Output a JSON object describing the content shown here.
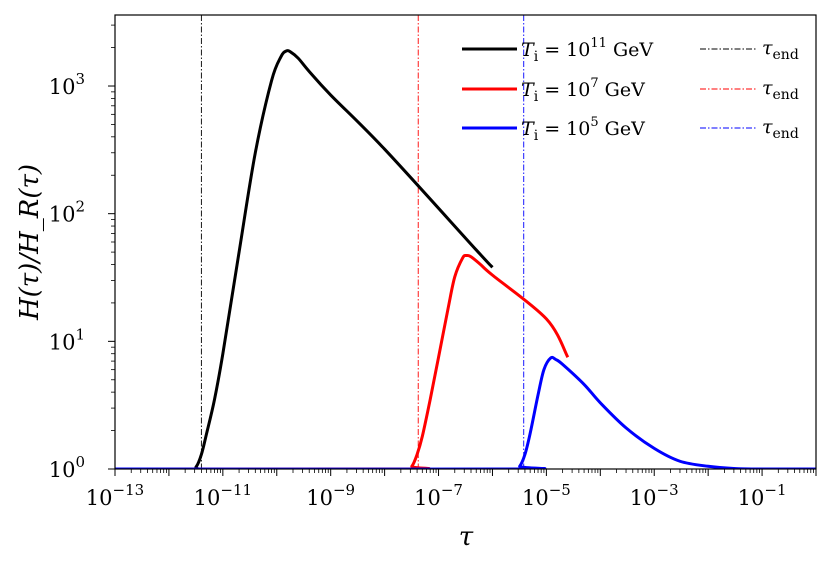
{
  "chart_data": {
    "type": "line",
    "title": "",
    "xlabel": "τ",
    "ylabel": "H(τ)/H_R(τ)",
    "xscale": "log",
    "yscale": "log",
    "xlim": [
      1e-13,
      1
    ],
    "ylim": [
      1,
      3600
    ],
    "x_ticks": [
      {
        "value": 1e-13,
        "base": "10",
        "exp": "−13"
      },
      {
        "value": 1e-11,
        "base": "10",
        "exp": "−11"
      },
      {
        "value": 1e-09,
        "base": "10",
        "exp": "−9"
      },
      {
        "value": 1e-07,
        "base": "10",
        "exp": "−7"
      },
      {
        "value": 1e-05,
        "base": "10",
        "exp": "−5"
      },
      {
        "value": 0.001,
        "base": "10",
        "exp": "−3"
      },
      {
        "value": 0.1,
        "base": "10",
        "exp": "−1"
      }
    ],
    "y_ticks": [
      {
        "value": 1,
        "base": "10",
        "exp": "0"
      },
      {
        "value": 10,
        "base": "10",
        "exp": "1"
      },
      {
        "value": 100,
        "base": "10",
        "exp": "2"
      },
      {
        "value": 1000,
        "base": "10",
        "exp": "3"
      }
    ],
    "legend_position": "top-right",
    "series": [
      {
        "name": "T_i = 10^11 GeV",
        "label_var": "T",
        "label_sub": "i",
        "label_eq": " = 10",
        "label_exp": "11",
        "label_unit": " GeV",
        "color": "#000000",
        "points": [
          [
            1e-13,
            1
          ],
          [
            2.5e-12,
            1
          ],
          [
            3.2e-12,
            1.04
          ],
          [
            4e-12,
            1.3
          ],
          [
            5e-12,
            1.9
          ],
          [
            7e-12,
            3.5
          ],
          [
            1e-11,
            8
          ],
          [
            2e-11,
            50
          ],
          [
            4e-11,
            300
          ],
          [
            8e-11,
            1100
          ],
          [
            1.2e-10,
            1700
          ],
          [
            1.5e-10,
            1880
          ],
          [
            1.8e-10,
            1850
          ],
          [
            2.5e-10,
            1650
          ],
          [
            4e-10,
            1300
          ],
          [
            1e-09,
            850
          ],
          [
            1e-08,
            320
          ],
          [
            5e-07,
            52
          ],
          [
            1e-06,
            38
          ]
        ]
      },
      {
        "name": "T_i = 10^7 GeV",
        "label_var": "T",
        "label_sub": "i",
        "label_eq": " = 10",
        "label_exp": "7",
        "label_unit": " GeV",
        "color": "#ff0000",
        "points": [
          [
            1e-13,
            1
          ],
          [
            2.5e-08,
            1
          ],
          [
            3.2e-08,
            1.05
          ],
          [
            4e-08,
            1.3
          ],
          [
            5e-08,
            1.8
          ],
          [
            7e-08,
            3.5
          ],
          [
            1e-07,
            7.5
          ],
          [
            1.5e-07,
            18
          ],
          [
            2e-07,
            32
          ],
          [
            2.8e-07,
            45
          ],
          [
            3.3e-07,
            47
          ],
          [
            4e-07,
            46
          ],
          [
            6e-07,
            40
          ],
          [
            1e-06,
            33
          ],
          [
            1e-05,
            15
          ],
          [
            2.5e-05,
            7.5
          ]
        ]
      },
      {
        "name": "T_i = 10^5 GeV",
        "label_var": "T",
        "label_sub": "i",
        "label_eq": " = 10",
        "label_exp": "5",
        "label_unit": " GeV",
        "color": "#0000ff",
        "points": [
          [
            1e-13,
            1
          ],
          [
            2.5e-06,
            1
          ],
          [
            3.2e-06,
            1.05
          ],
          [
            4e-06,
            1.3
          ],
          [
            5e-06,
            1.9
          ],
          [
            7e-06,
            3.8
          ],
          [
            9e-06,
            6
          ],
          [
            1.2e-05,
            7.4
          ],
          [
            1.5e-05,
            7.2
          ],
          [
            2e-05,
            6.6
          ],
          [
            5e-05,
            4.6
          ],
          [
            0.0001,
            3.3
          ],
          [
            0.0003,
            2.1
          ],
          [
            0.001,
            1.45
          ],
          [
            0.003,
            1.15
          ],
          [
            0.01,
            1.05
          ],
          [
            0.03,
            1.01
          ],
          [
            0.1,
            1.0
          ],
          [
            1,
            1.0
          ]
        ]
      }
    ],
    "vlines": [
      {
        "name": "τ_end",
        "x": 4e-12,
        "color": "#000000",
        "label_var": "τ",
        "label_sub": "end"
      },
      {
        "name": "τ_end",
        "x": 4.2e-08,
        "color": "#ff0000",
        "label_var": "τ",
        "label_sub": "end"
      },
      {
        "name": "τ_end",
        "x": 3.8e-06,
        "color": "#0000ff",
        "label_var": "τ",
        "label_sub": "end"
      }
    ]
  }
}
